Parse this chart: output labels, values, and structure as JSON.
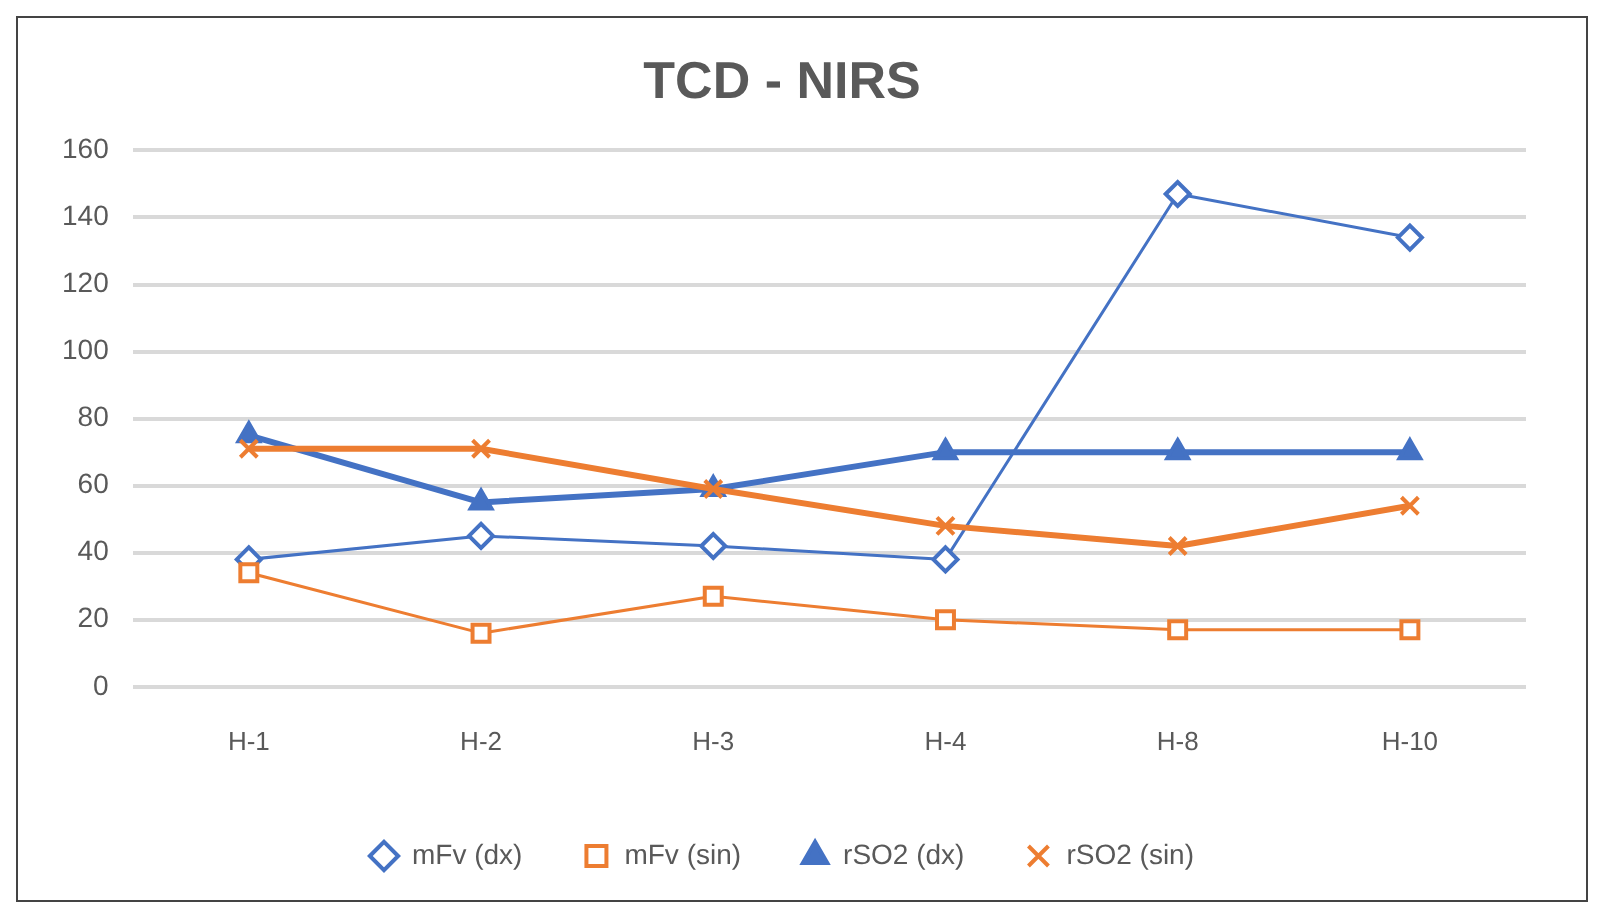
{
  "chart_data": {
    "type": "line",
    "title": "TCD - NIRS",
    "categories": [
      "H-1",
      "H-2",
      "H-3",
      "H-4",
      "H-8",
      "H-10"
    ],
    "series": [
      {
        "name": "mFv (dx)",
        "color": "#4472c4",
        "marker": "diamond",
        "values": [
          38,
          45,
          42,
          38,
          147,
          134
        ]
      },
      {
        "name": "mFv (sin)",
        "color": "#ed7d31",
        "marker": "square",
        "values": [
          34,
          16,
          27,
          20,
          17,
          17
        ]
      },
      {
        "name": "rSO2 (dx)",
        "color": "#4472c4",
        "marker": "triangle",
        "values": [
          75,
          55,
          59,
          70,
          70,
          70
        ]
      },
      {
        "name": "rSO2 (sin)",
        "color": "#ed7d31",
        "marker": "cross",
        "values": [
          71,
          71,
          59,
          48,
          42,
          54
        ]
      }
    ],
    "ylim": [
      0,
      160
    ],
    "yticks": [
      0,
      20,
      40,
      60,
      80,
      100,
      120,
      140,
      160
    ],
    "grid": "y",
    "legend": "bottom"
  }
}
